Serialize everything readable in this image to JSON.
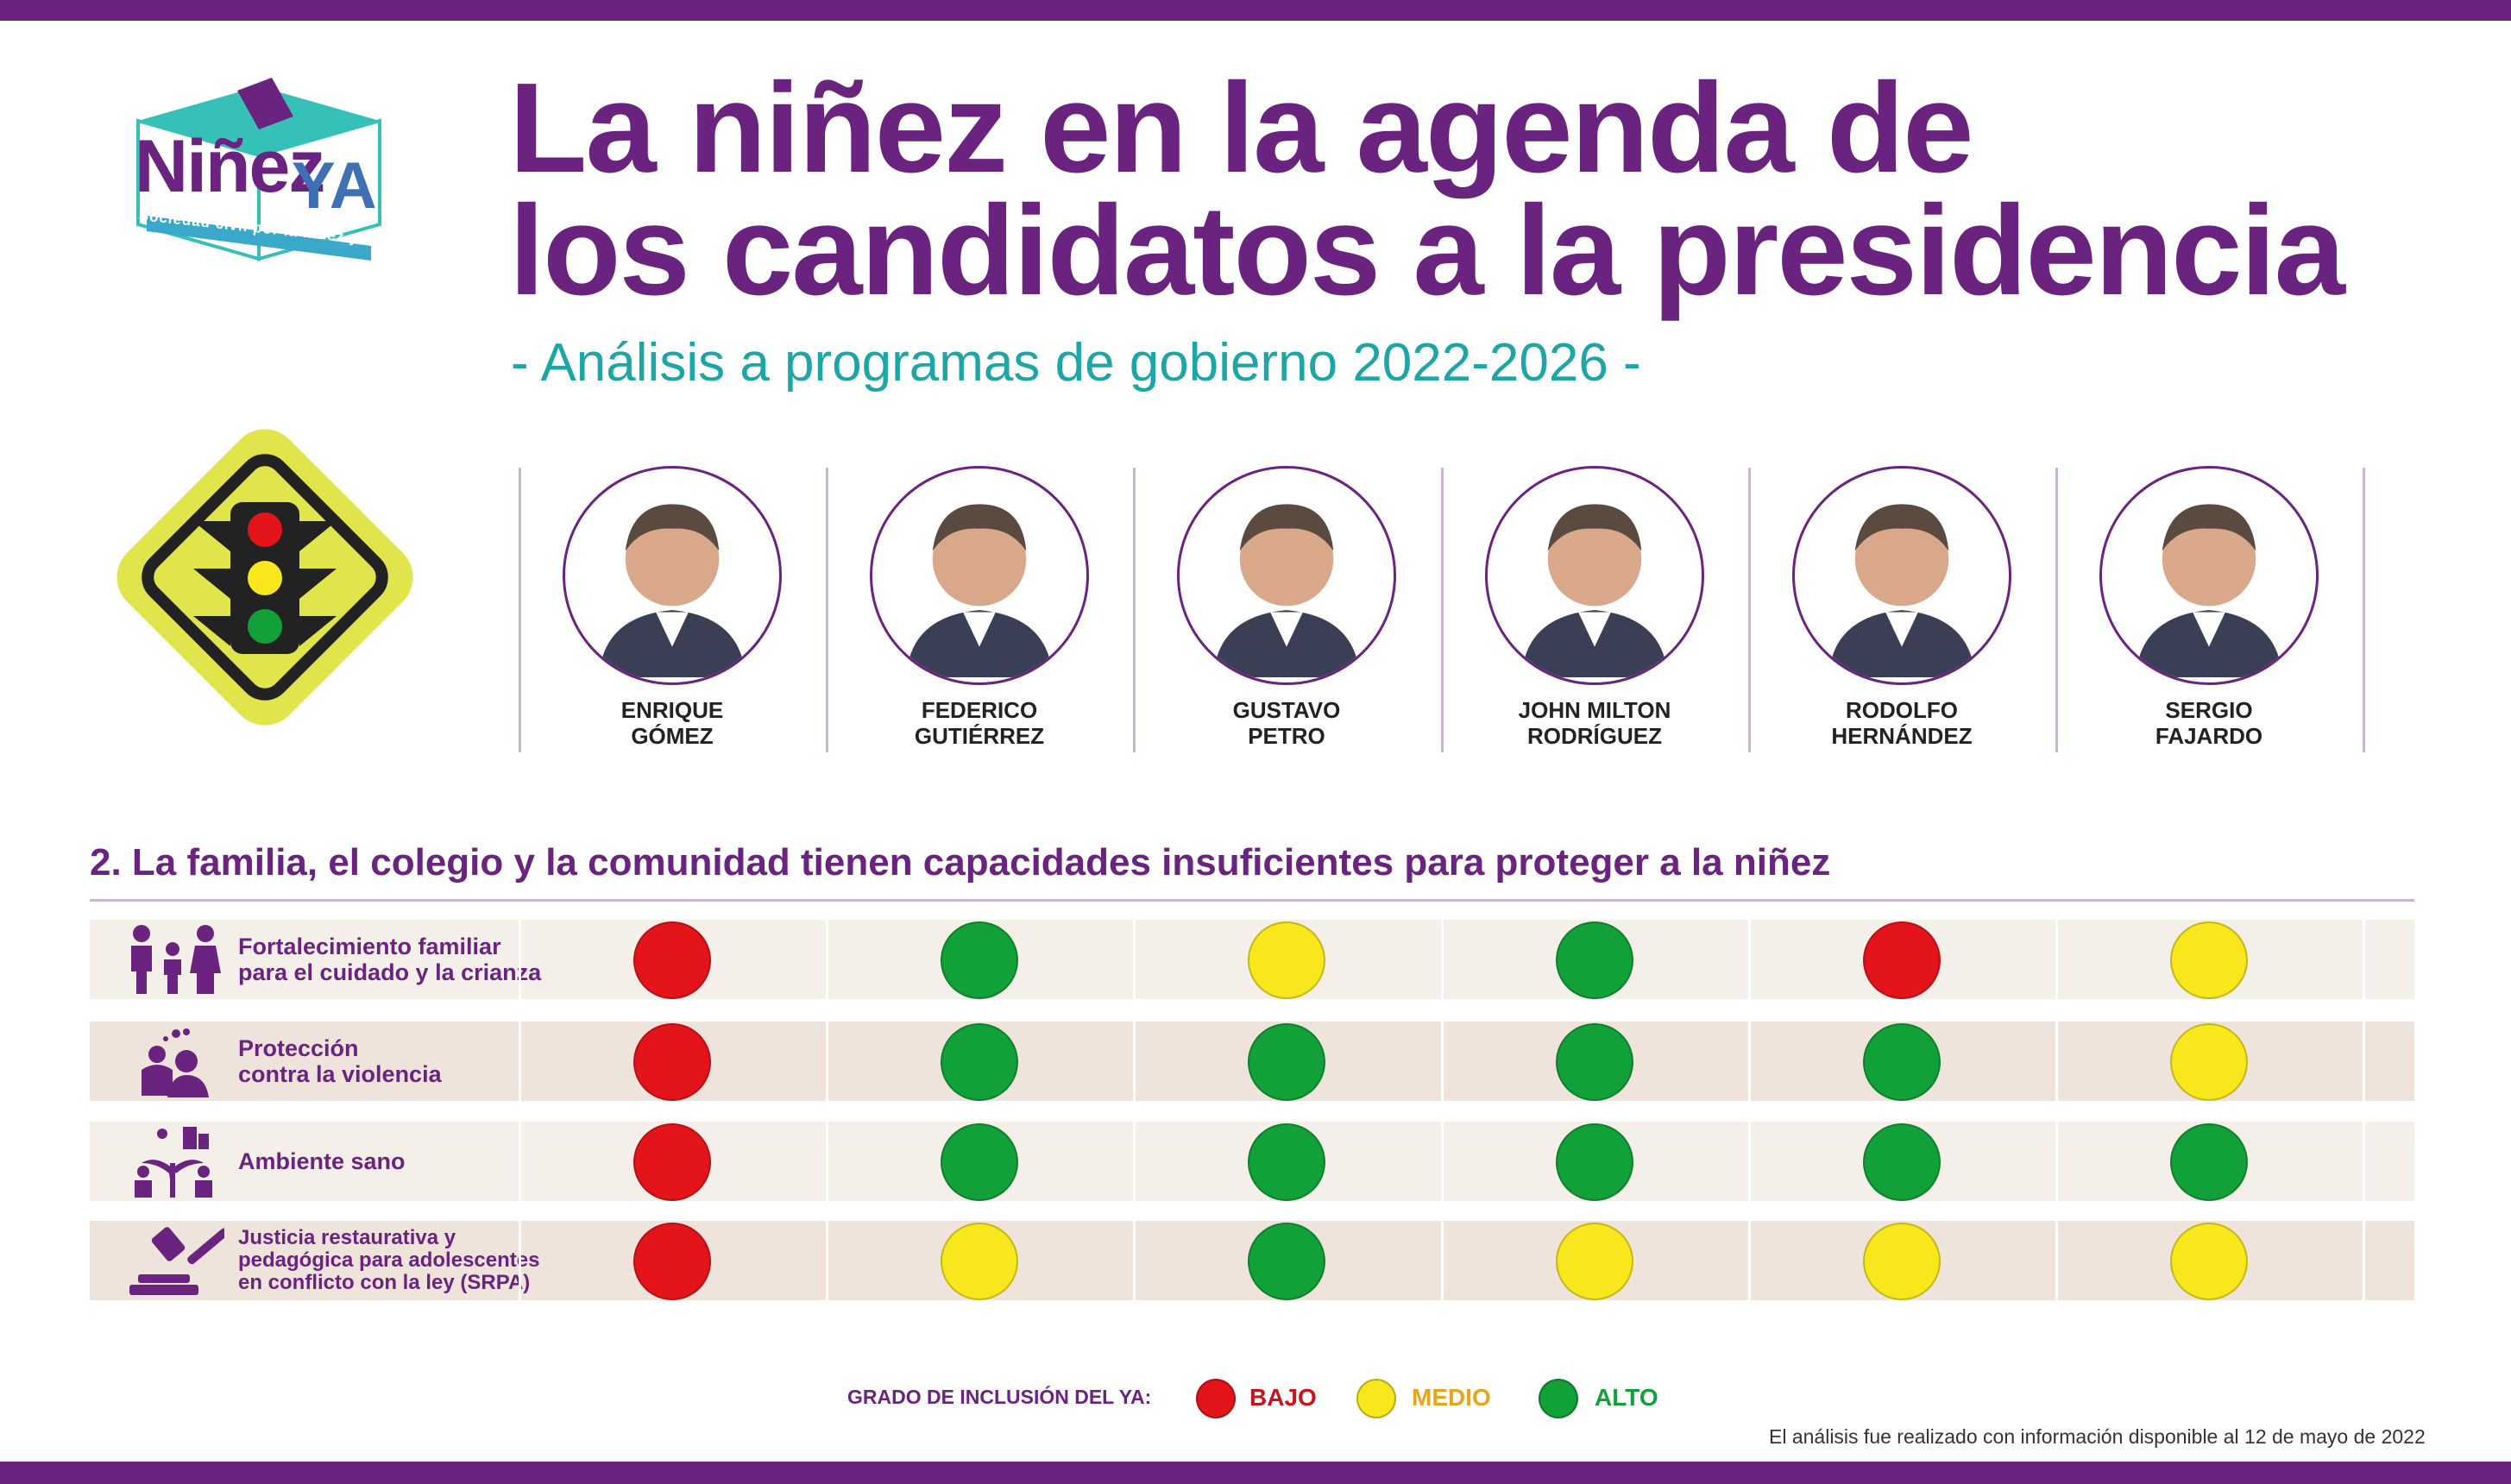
{
  "logo": {
    "word": "Niñez",
    "ya": "YA",
    "tagline": "Sociedad civil por la niñez y la adolescencia"
  },
  "title_line1": "La niñez en la agenda de",
  "title_line2": "los candidatos a la presidencia",
  "subtitle": "- Análisis a programas de gobierno 2022-2026 -",
  "candidates": [
    {
      "line1": "ENRIQUE",
      "line2": "GÓMEZ"
    },
    {
      "line1": "FEDERICO",
      "line2": "GUTIÉRREZ"
    },
    {
      "line1": "GUSTAVO",
      "line2": "PETRO"
    },
    {
      "line1": "JOHN MILTON",
      "line2": "RODRÍGUEZ"
    },
    {
      "line1": "RODOLFO",
      "line2": "HERNÁNDEZ"
    },
    {
      "line1": "SERGIO",
      "line2": "FAJARDO"
    }
  ],
  "section_title": "2. La familia, el colegio y la comunidad tienen capacidades insuficientes para proteger a la niñez",
  "rows": [
    {
      "lines": [
        "Fortalecimiento familiar",
        "para el cuidado y la crianza"
      ],
      "icon": "family-icon",
      "ratings": [
        "bajo",
        "alto",
        "medio",
        "alto",
        "bajo",
        "medio"
      ]
    },
    {
      "lines": [
        "Protección",
        "contra la violencia"
      ],
      "icon": "protection-icon",
      "ratings": [
        "bajo",
        "alto",
        "alto",
        "alto",
        "alto",
        "medio"
      ]
    },
    {
      "lines": [
        "Ambiente sano"
      ],
      "icon": "environment-icon",
      "ratings": [
        "bajo",
        "alto",
        "alto",
        "alto",
        "alto",
        "alto"
      ]
    },
    {
      "lines": [
        "Justicia restaurativa y",
        "pedagógica para adolescentes",
        "en conflicto con la ley (SRPA)"
      ],
      "icon": "gavel-icon",
      "ratings": [
        "bajo",
        "medio",
        "alto",
        "medio",
        "medio",
        "medio"
      ]
    }
  ],
  "legend": {
    "label": "GRADO DE INCLUSIÓN DEL YA:",
    "bajo": "BAJO",
    "medio": "MEDIO",
    "alto": "ALTO"
  },
  "colors": {
    "bajo": "#e3151a",
    "medio": "#f7e71c",
    "alto": "#12a038",
    "purple": "#6b2380",
    "teal": "#1ea5a5"
  },
  "footnote": "El análisis fue realizado con información disponible al 12 de mayo de 2022"
}
